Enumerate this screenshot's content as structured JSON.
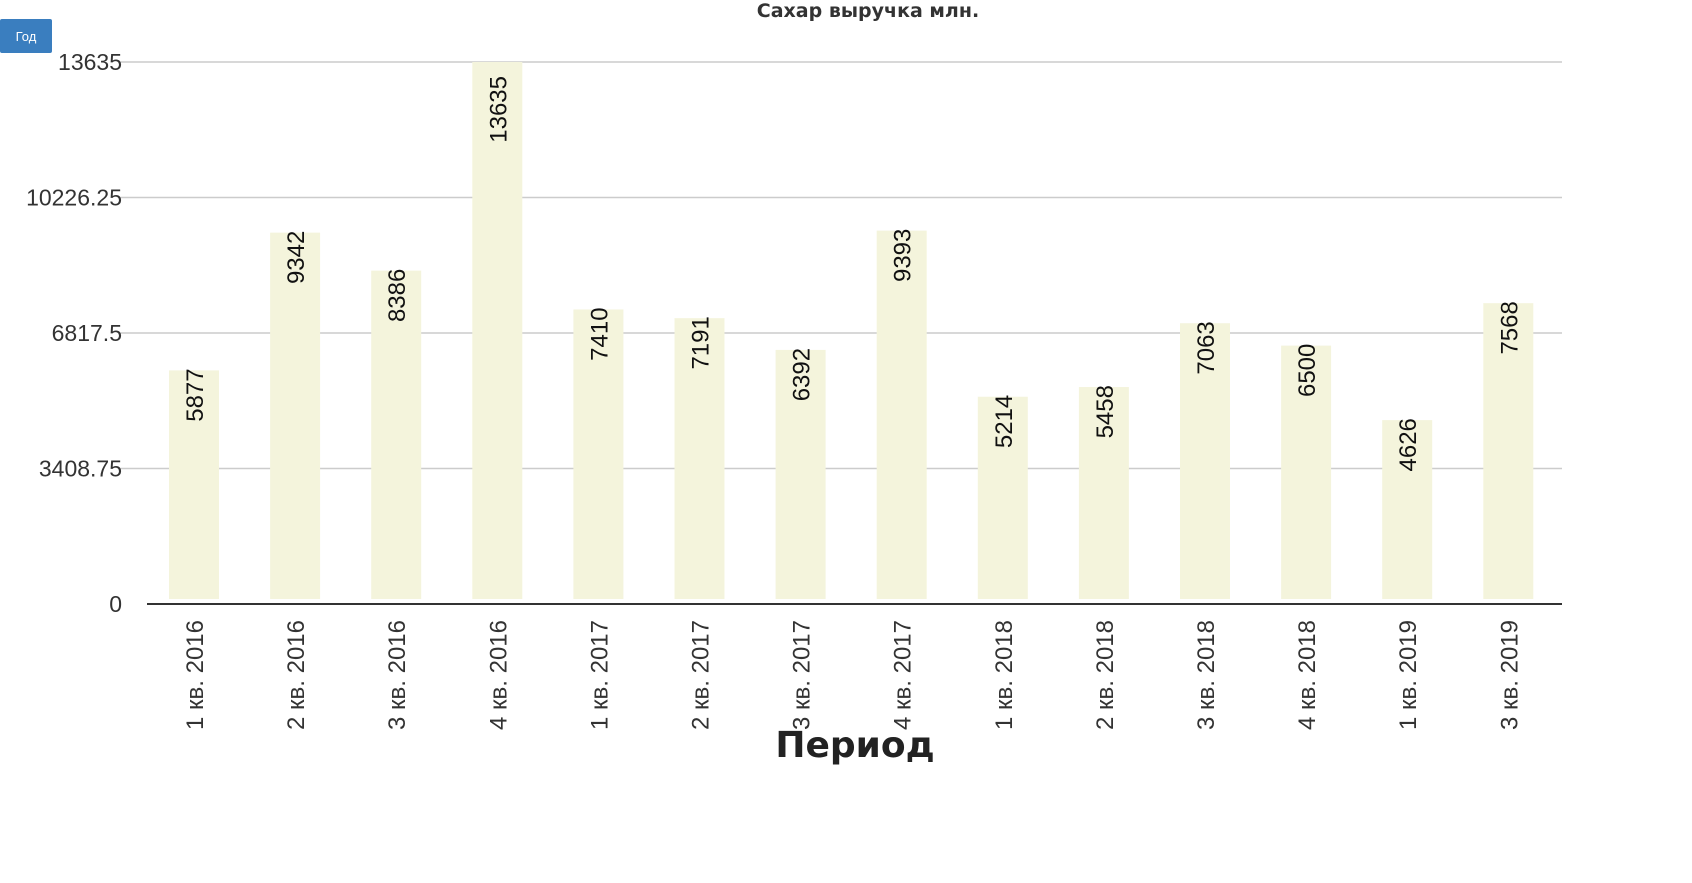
{
  "controls": {
    "year_button_label": "Год"
  },
  "chart_data": {
    "type": "bar",
    "title": "Сахар выручка млн.",
    "xlabel": "Период",
    "ylabel": "",
    "ylim": [
      0,
      13635
    ],
    "yticks": [
      "0",
      "3408.75",
      "6817.5",
      "10226.25",
      "13635"
    ],
    "ytick_values": [
      0,
      3408.75,
      6817.5,
      10226.25,
      13635
    ],
    "grid": true,
    "bar_color": "#f4f4dc",
    "categories": [
      "1 кв. 2016",
      "2 кв. 2016",
      "3 кв. 2016",
      "4 кв. 2016",
      "1 кв. 2017",
      "2 кв. 2017",
      "3 кв. 2017",
      "4 кв. 2017",
      "1 кв. 2018",
      "2 кв. 2018",
      "3 кв. 2018",
      "4 кв. 2018",
      "1 кв. 2019",
      "3 кв. 2019"
    ],
    "values": [
      5877,
      9342,
      8386,
      13635,
      7410,
      7191,
      6392,
      9393,
      5214,
      5458,
      7063,
      6500,
      4626,
      7568
    ]
  }
}
